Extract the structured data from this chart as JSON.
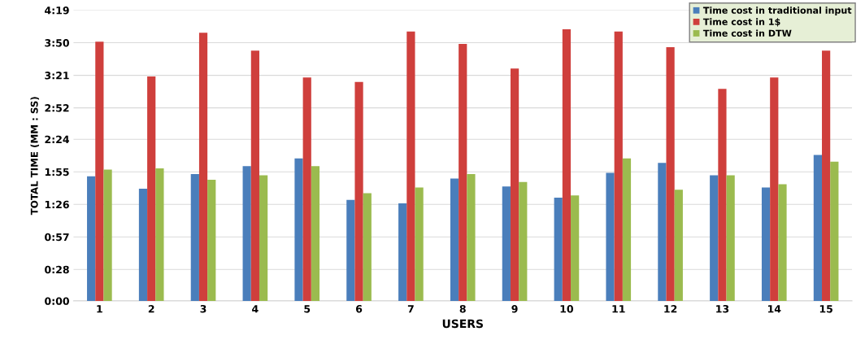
{
  "chart_data": {
    "type": "bar",
    "xlabel": "USERS",
    "ylabel": "TOTAL TIME (MM : SS)",
    "categories": [
      "1",
      "2",
      "3",
      "4",
      "5",
      "6",
      "7",
      "8",
      "9",
      "10",
      "11",
      "12",
      "13",
      "14",
      "15"
    ],
    "series": [
      {
        "name": "Time cost in traditional input",
        "color": "#4a7ebb",
        "values": [
          111,
          100,
          113,
          120,
          127,
          90,
          87,
          109,
          102,
          92,
          114,
          123,
          112,
          101,
          130
        ]
      },
      {
        "name": "Time cost in 1$",
        "color": "#cf3f3c",
        "values": [
          231,
          200,
          239,
          223,
          199,
          195,
          240,
          229,
          207,
          242,
          240,
          226,
          189,
          199,
          223
        ]
      },
      {
        "name": "Time cost in DTW",
        "color": "#9bbb4f",
        "values": [
          117,
          118,
          108,
          112,
          120,
          96,
          101,
          113,
          106,
          94,
          127,
          99,
          112,
          104,
          124
        ]
      }
    ],
    "ylim": [
      0,
      259
    ],
    "yticks": [
      {
        "value": 0,
        "label": "0:00"
      },
      {
        "value": 28,
        "label": "0:28"
      },
      {
        "value": 57,
        "label": "0:57"
      },
      {
        "value": 86,
        "label": "1:26"
      },
      {
        "value": 115,
        "label": "1:55"
      },
      {
        "value": 144,
        "label": "2:24"
      },
      {
        "value": 172,
        "label": "2:52"
      },
      {
        "value": 201,
        "label": "3:21"
      },
      {
        "value": 230,
        "label": "3:50"
      },
      {
        "value": 259,
        "label": "4:19"
      }
    ],
    "grid": "y",
    "legend": "top right"
  }
}
